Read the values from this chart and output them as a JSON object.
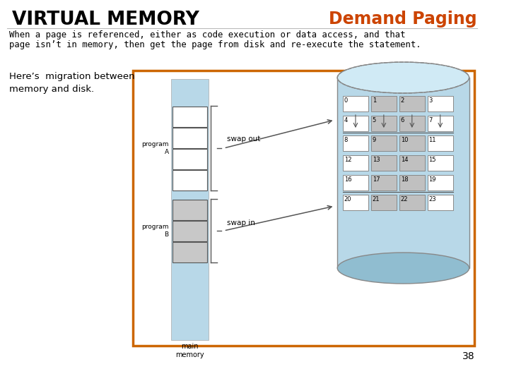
{
  "title_left": "VIRTUAL MEMORY",
  "title_right": "Demand Paging",
  "title_right_color": "#cc4400",
  "title_left_color": "#000000",
  "background_color": "#ffffff",
  "body_line1": "When a page is referenced, either as code execution or data access, and that",
  "body_line2": "page isn’t in memory, then get the page from disk and re-execute the statement.",
  "side_text": "Here’s  migration between\nmemory and disk.",
  "page_number": "38",
  "box_border_color": "#cc6600",
  "memory_col_color": "#b8d8e8",
  "disk_color": "#b8d8e8",
  "swap_out_text": "swap out",
  "swap_in_text": "swap in",
  "main_memory_text": "main\nmemory",
  "program_a_label": "program\nA",
  "program_b_label": "program\nB",
  "highlight_cells": [
    1,
    2,
    5,
    6,
    9,
    10,
    13,
    14,
    17,
    18,
    21,
    22
  ],
  "swap_out_highlighted": [
    1,
    2,
    5,
    6
  ],
  "swap_in_highlighted": [
    17,
    18
  ],
  "grid_rows": [
    [
      0,
      1,
      2,
      3
    ],
    [
      4,
      5,
      6,
      7
    ],
    [
      8,
      9,
      10,
      11
    ],
    [
      12,
      13,
      14,
      15
    ],
    [
      16,
      17,
      18,
      19
    ],
    [
      20,
      21,
      22,
      23
    ]
  ]
}
